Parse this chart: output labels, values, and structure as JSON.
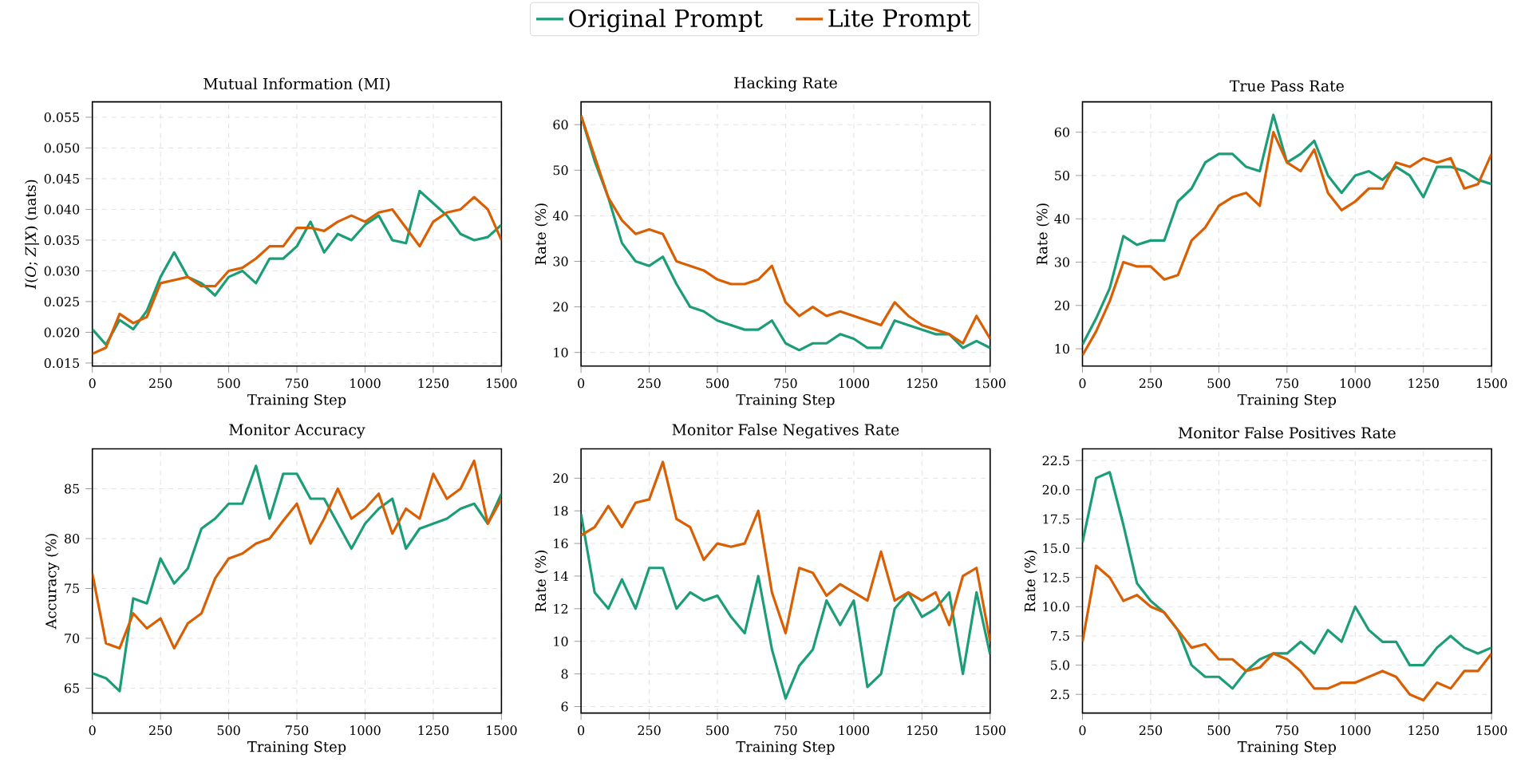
{
  "chart_data": [
    {
      "type": "line",
      "title": "Mutual Information (MI)",
      "xlabel": "Training Step",
      "ylabel": "*I*(*O*; *Z*|*X*) (nats)",
      "legend": "top",
      "grid": true,
      "xlim": [
        0,
        1500
      ],
      "ylim": [
        0.0145,
        0.0575
      ],
      "xticks": [
        0,
        250,
        500,
        750,
        1000,
        1250,
        1500
      ],
      "yticks": [
        {
          "value": 0.015,
          "label": "0.015"
        },
        {
          "value": 0.02,
          "label": "0.020"
        },
        {
          "value": 0.025,
          "label": "0.025"
        },
        {
          "value": 0.03,
          "label": "0.030"
        },
        {
          "value": 0.035,
          "label": "0.035"
        },
        {
          "value": 0.04,
          "label": "0.040"
        },
        {
          "value": 0.045,
          "label": "0.045"
        },
        {
          "value": 0.05,
          "label": "0.050"
        },
        {
          "value": 0.055,
          "label": "0.055"
        }
      ],
      "x": [
        0,
        50,
        100,
        150,
        200,
        250,
        300,
        350,
        400,
        450,
        500,
        550,
        600,
        650,
        700,
        750,
        800,
        850,
        900,
        950,
        1000,
        1050,
        1100,
        1150,
        1200,
        1250,
        1300,
        1350,
        1400,
        1450,
        1500
      ],
      "series": [
        {
          "name": "Original Prompt",
          "color": "#1b9e77",
          "values": [
            0.0205,
            0.018,
            0.022,
            0.0205,
            0.0235,
            0.029,
            0.033,
            0.029,
            0.028,
            0.026,
            0.029,
            0.03,
            0.028,
            0.032,
            0.032,
            0.034,
            0.038,
            0.033,
            0.036,
            0.035,
            0.0375,
            0.039,
            0.035,
            0.0345,
            0.043,
            0.041,
            0.039,
            0.036,
            0.035,
            0.0355,
            0.0375
          ]
        },
        {
          "name": "Lite Prompt",
          "color": "#d95f02",
          "values": [
            0.0165,
            0.0175,
            0.023,
            0.0215,
            0.0225,
            0.028,
            0.0285,
            0.029,
            0.0275,
            0.0275,
            0.03,
            0.0305,
            0.032,
            0.034,
            0.034,
            0.037,
            0.037,
            0.0365,
            0.038,
            0.039,
            0.038,
            0.0395,
            0.04,
            0.037,
            0.034,
            0.038,
            0.0395,
            0.04,
            0.042,
            0.04,
            0.035
          ]
        }
      ]
    },
    {
      "type": "line",
      "title": "Hacking Rate",
      "xlabel": "Training Step",
      "ylabel": "Rate (%)",
      "grid": true,
      "xlim": [
        0,
        1500
      ],
      "ylim": [
        7,
        65
      ],
      "xticks": [
        0,
        250,
        500,
        750,
        1000,
        1250,
        1500
      ],
      "yticks": [
        10,
        20,
        30,
        40,
        50,
        60
      ],
      "x": [
        0,
        50,
        100,
        150,
        200,
        250,
        300,
        350,
        400,
        450,
        500,
        550,
        600,
        650,
        700,
        750,
        800,
        850,
        900,
        950,
        1000,
        1050,
        1100,
        1150,
        1200,
        1250,
        1300,
        1350,
        1400,
        1450,
        1500
      ],
      "series": [
        {
          "color": "#1b9e77",
          "values": [
            62,
            52,
            44,
            34,
            30,
            29,
            31,
            25,
            20,
            19,
            17,
            16,
            15,
            15,
            17,
            12,
            10.5,
            12,
            12,
            14,
            13,
            11,
            11,
            17,
            16,
            15,
            14,
            14,
            11,
            12.5,
            11
          ]
        },
        {
          "color": "#d95f02",
          "values": [
            62,
            53,
            44,
            39,
            36,
            37,
            36,
            30,
            29,
            28,
            26,
            25,
            25,
            26,
            29,
            21,
            18,
            20,
            18,
            19,
            18,
            17,
            16,
            21,
            18,
            16,
            15,
            14,
            12,
            18,
            13
          ]
        }
      ]
    },
    {
      "type": "line",
      "title": "True Pass Rate",
      "xlabel": "Training Step",
      "ylabel": "Rate (%)",
      "grid": true,
      "xlim": [
        0,
        1500
      ],
      "ylim": [
        6,
        67
      ],
      "xticks": [
        0,
        250,
        500,
        750,
        1000,
        1250,
        1500
      ],
      "yticks": [
        10,
        20,
        30,
        40,
        50,
        60
      ],
      "x": [
        0,
        50,
        100,
        150,
        200,
        250,
        300,
        350,
        400,
        450,
        500,
        550,
        600,
        650,
        700,
        750,
        800,
        850,
        900,
        950,
        1000,
        1050,
        1100,
        1150,
        1200,
        1250,
        1300,
        1350,
        1400,
        1450,
        1500
      ],
      "series": [
        {
          "color": "#1b9e77",
          "values": [
            11,
            17,
            24,
            36,
            34,
            35,
            35,
            44,
            47,
            53,
            55,
            55,
            52,
            51,
            64,
            53,
            55,
            58,
            50,
            46,
            50,
            51,
            49,
            52,
            50,
            45,
            52,
            52,
            51,
            49,
            48
          ]
        },
        {
          "color": "#d95f02",
          "values": [
            8.5,
            14,
            21,
            30,
            29,
            29,
            26,
            27,
            35,
            38,
            43,
            45,
            46,
            43,
            60,
            53,
            51,
            56,
            46,
            42,
            44,
            47,
            47,
            53,
            52,
            54,
            53,
            54,
            47,
            48,
            55
          ]
        }
      ]
    },
    {
      "type": "line",
      "title": "Monitor Accuracy",
      "xlabel": "Training Step",
      "ylabel": "Accuracy (%)",
      "grid": true,
      "xlim": [
        0,
        1500
      ],
      "ylim": [
        62.5,
        89
      ],
      "xticks": [
        0,
        250,
        500,
        750,
        1000,
        1250,
        1500
      ],
      "yticks": [
        65,
        70,
        75,
        80,
        85
      ],
      "x": [
        0,
        50,
        100,
        150,
        200,
        250,
        300,
        350,
        400,
        450,
        500,
        550,
        600,
        650,
        700,
        750,
        800,
        850,
        900,
        950,
        1000,
        1050,
        1100,
        1150,
        1200,
        1250,
        1300,
        1350,
        1400,
        1450,
        1500
      ],
      "series": [
        {
          "color": "#1b9e77",
          "values": [
            66.5,
            66,
            64.7,
            74,
            73.5,
            78,
            75.5,
            77,
            81,
            82,
            83.5,
            83.5,
            87.3,
            82,
            86.5,
            86.5,
            84,
            84,
            81.5,
            79,
            81.5,
            83,
            84,
            79,
            81,
            81.5,
            82,
            83,
            83.5,
            81.5,
            84.5
          ]
        },
        {
          "color": "#d95f02",
          "values": [
            76.5,
            69.5,
            69,
            72.5,
            71,
            72,
            69,
            71.5,
            72.5,
            76,
            78,
            78.5,
            79.5,
            80,
            81.8,
            83.5,
            79.5,
            82,
            85,
            82,
            83,
            84.5,
            80.5,
            83,
            82,
            86.5,
            84,
            85,
            87.8,
            81.5,
            84
          ]
        }
      ]
    },
    {
      "type": "line",
      "title": "Monitor False Negatives Rate",
      "xlabel": "Training Step",
      "ylabel": "Rate (%)",
      "grid": true,
      "xlim": [
        0,
        1500
      ],
      "ylim": [
        5.6,
        21.8
      ],
      "xticks": [
        0,
        250,
        500,
        750,
        1000,
        1250,
        1500
      ],
      "yticks": [
        6,
        8,
        10,
        12,
        14,
        16,
        18,
        20
      ],
      "x": [
        0,
        50,
        100,
        150,
        200,
        250,
        300,
        350,
        400,
        450,
        500,
        550,
        600,
        650,
        700,
        750,
        800,
        850,
        900,
        950,
        1000,
        1050,
        1100,
        1150,
        1200,
        1250,
        1300,
        1350,
        1400,
        1450,
        1500
      ],
      "series": [
        {
          "color": "#1b9e77",
          "values": [
            17.8,
            13,
            12,
            13.8,
            12,
            14.5,
            14.5,
            12,
            13,
            12.5,
            12.8,
            11.5,
            10.5,
            14,
            9.5,
            6.5,
            8.5,
            9.5,
            12.5,
            11,
            12.5,
            7.2,
            8,
            12,
            13,
            11.5,
            12,
            13,
            8,
            13,
            9.2
          ]
        },
        {
          "color": "#d95f02",
          "values": [
            16.5,
            17,
            18.3,
            17,
            18.5,
            18.7,
            21,
            17.5,
            17,
            15,
            16,
            15.8,
            16,
            18,
            13,
            10.5,
            14.5,
            14.2,
            12.8,
            13.5,
            13,
            12.5,
            15.5,
            12.5,
            13,
            12.5,
            13,
            11,
            14,
            14.5,
            10
          ]
        }
      ]
    },
    {
      "type": "line",
      "title": "Monitor False Positives Rate",
      "xlabel": "Training Step",
      "ylabel": "Rate (%)",
      "grid": true,
      "xlim": [
        0,
        1500
      ],
      "ylim": [
        0.9,
        23.5
      ],
      "xticks": [
        0,
        250,
        500,
        750,
        1000,
        1250,
        1500
      ],
      "yticks": [
        2.5,
        {
          "value": 5,
          "label": "5.0"
        },
        7.5,
        {
          "value": 10,
          "label": "10.0"
        },
        12.5,
        {
          "value": 15,
          "label": "15.0"
        },
        17.5,
        {
          "value": 20,
          "label": "20.0"
        },
        22.5
      ],
      "x": [
        0,
        50,
        100,
        150,
        200,
        250,
        300,
        350,
        400,
        450,
        500,
        550,
        600,
        650,
        700,
        750,
        800,
        850,
        900,
        950,
        1000,
        1050,
        1100,
        1150,
        1200,
        1250,
        1300,
        1350,
        1400,
        1450,
        1500
      ],
      "series": [
        {
          "color": "#1b9e77",
          "values": [
            15.5,
            21,
            21.5,
            17,
            12,
            10.5,
            9.5,
            8,
            5,
            4,
            4,
            3,
            4.5,
            5.5,
            6,
            6,
            7,
            6,
            8,
            7,
            10,
            8,
            7,
            7,
            5,
            5,
            6.5,
            7.5,
            6.5,
            6,
            6.5
          ]
        },
        {
          "color": "#d95f02",
          "values": [
            7,
            13.5,
            12.5,
            10.5,
            11,
            10,
            9.5,
            8,
            6.5,
            6.8,
            5.5,
            5.5,
            4.5,
            4.8,
            6,
            5.5,
            4.5,
            3,
            3,
            3.5,
            3.5,
            4,
            4.5,
            4,
            2.5,
            2,
            3.5,
            3,
            4.5,
            4.5,
            6
          ]
        }
      ]
    }
  ]
}
